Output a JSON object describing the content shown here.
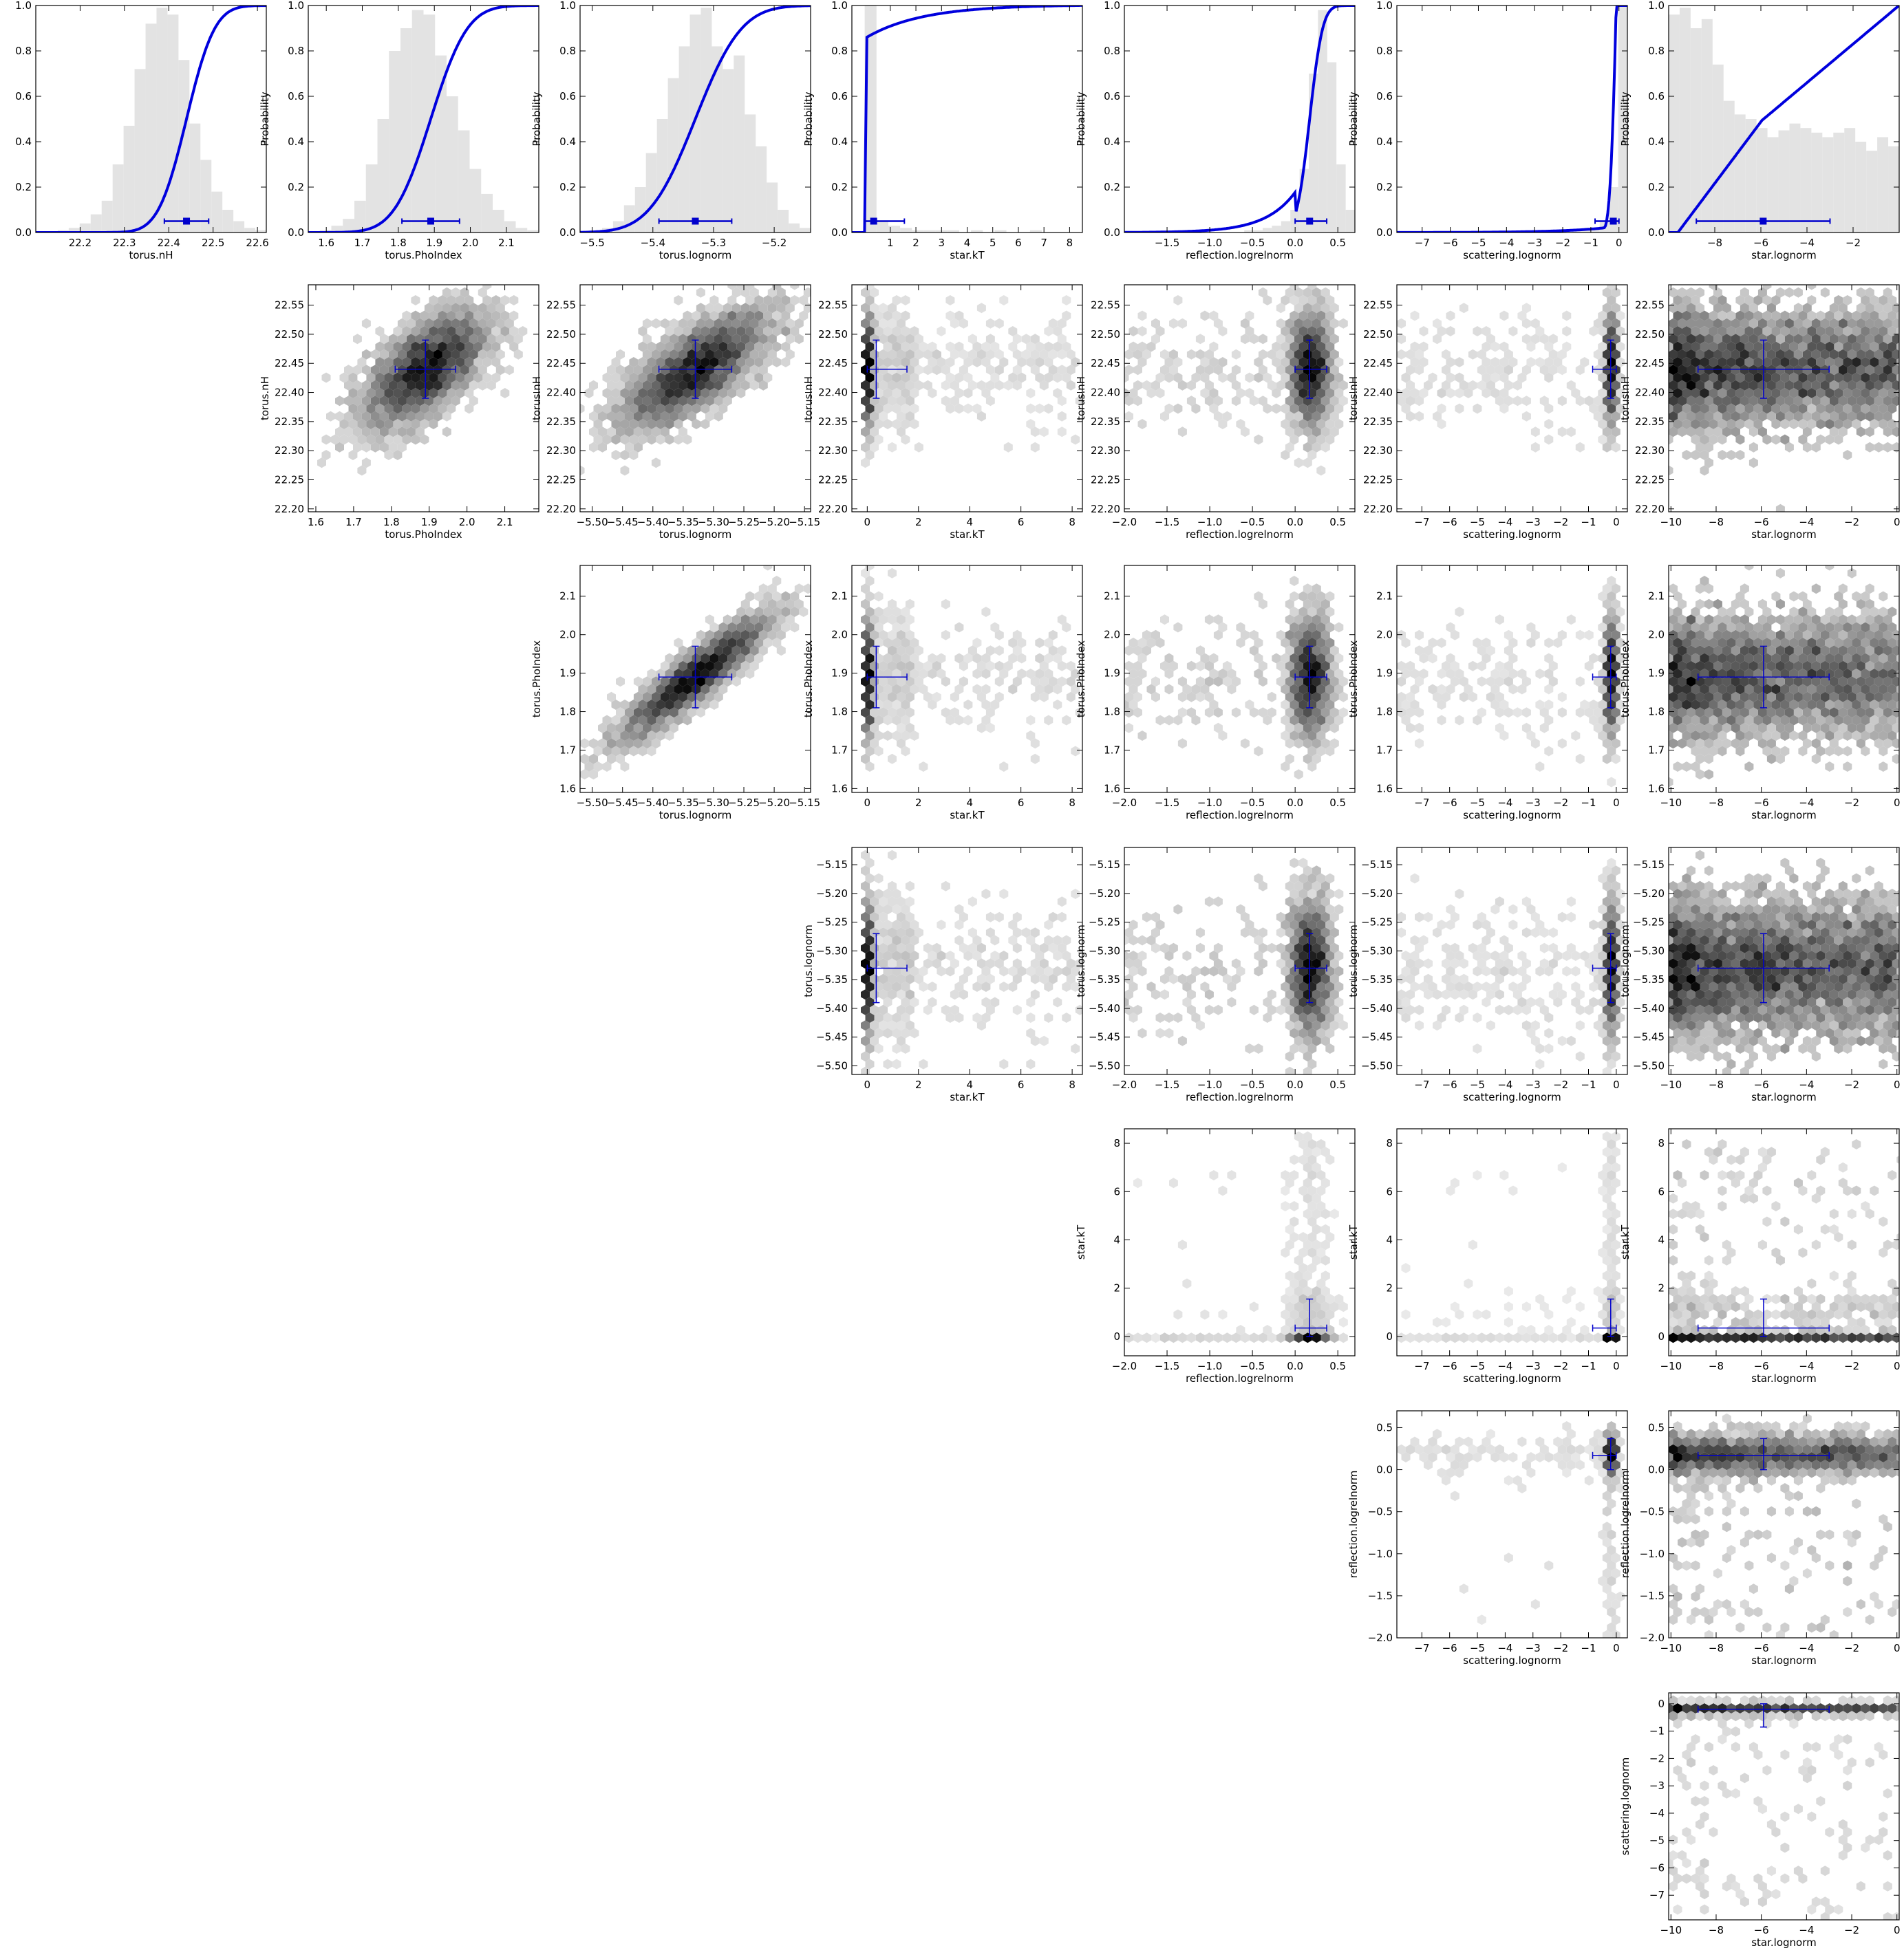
{
  "parameters": [
    {
      "key": "torus.nH",
      "label": "torus.nH",
      "range": [
        22.1,
        22.62
      ],
      "median": 22.44,
      "err": [
        0.05,
        0.05
      ]
    },
    {
      "key": "torus.PhoIndex",
      "label": "torus.PhoIndex",
      "range": [
        1.55,
        2.19
      ],
      "median": 1.89,
      "err": [
        0.08,
        0.08
      ]
    },
    {
      "key": "torus.lognorm",
      "label": "torus.lognorm",
      "range": [
        -5.52,
        -5.14
      ],
      "median": -5.33,
      "err": [
        0.06,
        0.06
      ]
    },
    {
      "key": "star.kT",
      "label": "star.kT",
      "range": [
        -0.5,
        8.5
      ],
      "median": 0.35,
      "err": [
        0.35,
        1.2
      ]
    },
    {
      "key": "reflection.logrelnorm",
      "label": "reflection.logrelnorm",
      "range": [
        -2.0,
        0.7
      ],
      "median": 0.17,
      "err": [
        0.17,
        0.2
      ]
    },
    {
      "key": "scattering.lognorm",
      "label": "scattering.lognorm",
      "range": [
        -7.9,
        0.3
      ],
      "median": -0.2,
      "err": [
        0.65,
        0.2
      ]
    },
    {
      "key": "star.lognorm",
      "label": "star.lognorm",
      "range": [
        -10.0,
        0.0
      ],
      "median": -5.9,
      "err": [
        2.9,
        2.9
      ]
    }
  ],
  "chart_data": {
    "type": "corner-plot",
    "diagonal": {
      "ylabel": "Probability",
      "ylim": [
        0,
        1
      ],
      "yticks": [
        "0.0",
        "0.2",
        "0.4",
        "0.6",
        "0.8",
        "1.0"
      ],
      "panels": [
        {
          "param": "torus.nH",
          "xticks": [
            "22.2",
            "22.3",
            "22.4",
            "22.5",
            "22.6"
          ],
          "xtick_values": [
            22.2,
            22.3,
            22.4,
            22.5,
            22.6
          ],
          "hist": [
            0.0,
            0.0,
            0.01,
            0.02,
            0.04,
            0.08,
            0.14,
            0.3,
            0.47,
            0.72,
            0.92,
            0.99,
            0.96,
            0.76,
            0.48,
            0.32,
            0.18,
            0.1,
            0.05,
            0.02,
            0.01
          ]
        },
        {
          "param": "torus.PhoIndex",
          "xticks": [
            "1.6",
            "1.7",
            "1.8",
            "1.9",
            "2.0",
            "2.1"
          ],
          "xtick_values": [
            1.6,
            1.7,
            1.8,
            1.9,
            2.0,
            2.1
          ],
          "hist": [
            0.0,
            0.01,
            0.03,
            0.06,
            0.14,
            0.3,
            0.5,
            0.8,
            0.9,
            0.98,
            0.96,
            0.78,
            0.6,
            0.45,
            0.28,
            0.17,
            0.1,
            0.05,
            0.02,
            0.01
          ]
        },
        {
          "param": "torus.lognorm",
          "xticks": [
            "−5.5",
            "−5.4",
            "−5.3",
            "−5.2"
          ],
          "xtick_values": [
            -5.5,
            -5.4,
            -5.3,
            -5.2
          ],
          "hist": [
            0.0,
            0.01,
            0.02,
            0.05,
            0.12,
            0.2,
            0.35,
            0.5,
            0.68,
            0.82,
            0.96,
            0.99,
            0.82,
            0.72,
            0.78,
            0.52,
            0.38,
            0.22,
            0.1,
            0.04,
            0.02
          ]
        },
        {
          "param": "star.kT",
          "xticks": [
            "1",
            "2",
            "3",
            "4",
            "5",
            "6",
            "7",
            "8"
          ],
          "xtick_values": [
            1,
            2,
            3,
            4,
            5,
            6,
            7,
            8
          ],
          "hist": [
            1.0,
            0.05,
            0.03,
            0.02,
            0.01,
            0.01,
            0.01,
            0.01,
            0.0,
            0.01,
            0.0,
            0.01,
            0.0,
            0.0,
            0.01,
            0.0,
            0.0,
            0.0
          ]
        },
        {
          "param": "reflection.logrelnorm",
          "xticks": [
            "−1.5",
            "−1.0",
            "−0.5",
            "0.0",
            "0.5"
          ],
          "xtick_values": [
            -1.5,
            -1.0,
            -0.5,
            0.0,
            0.5
          ],
          "hist": [
            0.0,
            0.0,
            0.0,
            0.0,
            0.0,
            0.0,
            0.0,
            0.0,
            0.0,
            0.0,
            0.0,
            0.0,
            0.0,
            0.01,
            0.01,
            0.02,
            0.03,
            0.05,
            0.1,
            0.28,
            0.7,
            0.98,
            0.75,
            0.3,
            0.1
          ]
        },
        {
          "param": "scattering.lognorm",
          "xticks": [
            "−7",
            "−6",
            "−5",
            "−4",
            "−3",
            "−2",
            "−1",
            "0"
          ],
          "xtick_values": [
            -7,
            -6,
            -5,
            -4,
            -3,
            -2,
            -1,
            0
          ],
          "hist": [
            0.0,
            0.0,
            0.0,
            0.0,
            0.0,
            0.0,
            0.0,
            0.0,
            0.0,
            0.0,
            0.0,
            0.0,
            0.0,
            0.0,
            0.0,
            0.0,
            0.0,
            0.0,
            0.0,
            0.01,
            0.01,
            0.02,
            0.05,
            0.2,
            1.0
          ]
        },
        {
          "param": "star.lognorm",
          "xticks": [
            "−8",
            "−6",
            "−4",
            "−2"
          ],
          "xtick_values": [
            -8,
            -6,
            -4,
            -2
          ],
          "hist": [
            0.96,
            0.99,
            0.9,
            0.94,
            0.74,
            0.58,
            0.52,
            0.5,
            0.46,
            0.42,
            0.45,
            0.48,
            0.46,
            0.44,
            0.42,
            0.44,
            0.46,
            0.4,
            0.36,
            0.42,
            0.38
          ]
        }
      ]
    },
    "pairs": {
      "type": "hexbin",
      "rows": [
        {
          "param": "torus.nH",
          "yticks": [
            "22.20",
            "22.25",
            "22.30",
            "22.35",
            "22.40",
            "22.45",
            "22.50",
            "22.55"
          ],
          "ytick_values": [
            22.2,
            22.25,
            22.3,
            22.35,
            22.4,
            22.45,
            22.5,
            22.55
          ],
          "ylim": [
            22.195,
            22.585
          ]
        },
        {
          "param": "torus.PhoIndex",
          "yticks": [
            "1.6",
            "1.7",
            "1.8",
            "1.9",
            "2.0",
            "2.1"
          ],
          "ytick_values": [
            1.6,
            1.7,
            1.8,
            1.9,
            2.0,
            2.1
          ],
          "ylim": [
            1.59,
            2.18
          ]
        },
        {
          "param": "torus.lognorm",
          "yticks": [
            "−5.50",
            "−5.45",
            "−5.40",
            "−5.35",
            "−5.30",
            "−5.25",
            "−5.20",
            "−5.15"
          ],
          "ytick_values": [
            -5.5,
            -5.45,
            -5.4,
            -5.35,
            -5.3,
            -5.25,
            -5.2,
            -5.15
          ],
          "ylim": [
            -5.515,
            -5.12
          ]
        },
        {
          "param": "star.kT",
          "yticks": [
            "0",
            "2",
            "4",
            "6",
            "8"
          ],
          "ytick_values": [
            0,
            2,
            4,
            6,
            8
          ],
          "ylim": [
            -0.8,
            8.6
          ]
        },
        {
          "param": "reflection.logrelnorm",
          "yticks": [
            "−2.0",
            "−1.5",
            "−1.0",
            "−0.5",
            "0.0",
            "0.5"
          ],
          "ytick_values": [
            -2.0,
            -1.5,
            -1.0,
            -0.5,
            0.0,
            0.5
          ],
          "ylim": [
            -2.0,
            0.7
          ]
        },
        {
          "param": "scattering.lognorm",
          "yticks": [
            "−7",
            "−6",
            "−5",
            "−4",
            "−3",
            "−2",
            "−1",
            "0"
          ],
          "ytick_values": [
            -7,
            -6,
            -5,
            -4,
            -3,
            -2,
            -1,
            0
          ],
          "ylim": [
            -7.9,
            0.4
          ]
        }
      ],
      "columns": [
        {
          "param": "torus.PhoIndex",
          "xticks": [
            "1.6",
            "1.7",
            "1.8",
            "1.9",
            "2.0",
            "2.1"
          ],
          "xtick_values": [
            1.6,
            1.7,
            1.8,
            1.9,
            2.0,
            2.1
          ],
          "xlim": [
            1.58,
            2.19
          ]
        },
        {
          "param": "torus.lognorm",
          "xticks": [
            "−5.50",
            "−5.45",
            "−5.40",
            "−5.35",
            "−5.30",
            "−5.25",
            "−5.20",
            "−5.15"
          ],
          "xtick_values": [
            -5.5,
            -5.45,
            -5.4,
            -5.35,
            -5.3,
            -5.25,
            -5.2,
            -5.15
          ],
          "xlim": [
            -5.52,
            -5.14
          ]
        },
        {
          "param": "star.kT",
          "xticks": [
            "0",
            "2",
            "4",
            "6",
            "8"
          ],
          "xtick_values": [
            0,
            2,
            4,
            6,
            8
          ],
          "xlim": [
            -0.6,
            8.4
          ]
        },
        {
          "param": "reflection.logrelnorm",
          "xticks": [
            "−2.0",
            "−1.5",
            "−1.0",
            "−0.5",
            "0.0",
            "0.5"
          ],
          "xtick_values": [
            -2.0,
            -1.5,
            -1.0,
            -0.5,
            0.0,
            0.5
          ],
          "xlim": [
            -2.0,
            0.7
          ]
        },
        {
          "param": "scattering.lognorm",
          "xticks": [
            "−7",
            "−6",
            "−5",
            "−4",
            "−3",
            "−2",
            "−1",
            "0"
          ],
          "xtick_values": [
            -7,
            -6,
            -5,
            -4,
            -3,
            -2,
            -1,
            0
          ],
          "xlim": [
            -7.9,
            0.4
          ]
        },
        {
          "param": "star.lognorm",
          "xticks": [
            "−10",
            "−8",
            "−6",
            "−4",
            "−2",
            "0"
          ],
          "xtick_values": [
            -10,
            -8,
            -6,
            -4,
            -2,
            0
          ],
          "xlim": [
            -10.1,
            0.1
          ]
        }
      ],
      "correlations": {
        "torus.nH|torus.PhoIndex": 0.6,
        "torus.nH|torus.lognorm": 0.7,
        "torus.PhoIndex|torus.lognorm": 0.9
      }
    },
    "colors": {
      "cdf_line": "#0000dd",
      "errorbar": "#0000cc",
      "hist_fill": "#e3e3e3",
      "hexbin_dark": "#000000",
      "hexbin_light": "#eeeeee"
    }
  }
}
